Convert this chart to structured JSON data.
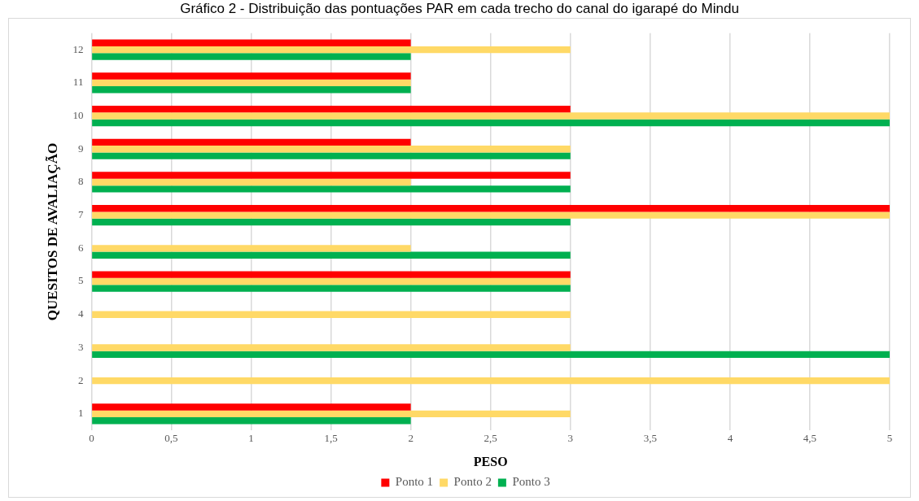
{
  "chart_data": {
    "type": "bar",
    "orientation": "horizontal",
    "title": "Gráfico 2 - Distribuição das pontuações PAR em cada trecho do canal do igarapé do Mindu",
    "xlabel": "PESO",
    "ylabel": "QUESITOS DE AVALIAÇÃO",
    "categories": [
      "12",
      "11",
      "10",
      "9",
      "8",
      "7",
      "6",
      "5",
      "4",
      "3",
      "2",
      "1"
    ],
    "series": [
      {
        "name": "Ponto 1",
        "color": "#ff0000",
        "values": [
          2,
          2,
          3,
          2,
          3,
          5,
          null,
          3,
          null,
          null,
          null,
          2
        ]
      },
      {
        "name": "Ponto 2",
        "color": "#ffd966",
        "values": [
          3,
          2,
          5,
          3,
          2,
          5,
          2,
          3,
          3,
          3,
          5,
          3
        ]
      },
      {
        "name": "Ponto 3",
        "color": "#00b050",
        "values": [
          2,
          2,
          5,
          3,
          3,
          3,
          3,
          3,
          null,
          5,
          null,
          2
        ]
      }
    ],
    "xlim": [
      0,
      5
    ],
    "xticks": [
      0,
      {
        "value": 0.5,
        "label": "0,5"
      },
      1,
      {
        "value": 1.5,
        "label": "1,5"
      },
      2,
      {
        "value": 2.5,
        "label": "2,5"
      },
      3,
      {
        "value": 3.5,
        "label": "3,5"
      },
      4,
      {
        "value": 4.5,
        "label": "4,5"
      },
      5
    ],
    "grid": "x",
    "legend": "bottom"
  }
}
